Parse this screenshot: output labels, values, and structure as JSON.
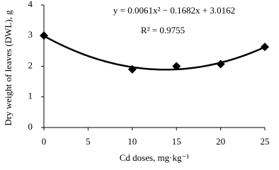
{
  "chart_data": {
    "type": "scatter",
    "equation": "y = 0.0061x² − 0.1682x + 3.0162",
    "r_squared": "R² = 0.9755",
    "x_label": "Cd doses, mg·kg⁻¹",
    "y_label": "Dry weight of leaves (DWL), g",
    "x": [
      0,
      10,
      15,
      20,
      25
    ],
    "values": [
      3.0,
      1.9,
      2.0,
      2.07,
      2.63
    ],
    "color": "#000000",
    "trendline": {
      "type": "polynomial",
      "order": 2
    },
    "xlim": [
      0,
      25
    ],
    "xticks": [
      0,
      5,
      10,
      15,
      20,
      25
    ],
    "ylim": [
      0,
      4
    ],
    "yticks": [
      0,
      1,
      2,
      3,
      4
    ],
    "grid": false
  }
}
